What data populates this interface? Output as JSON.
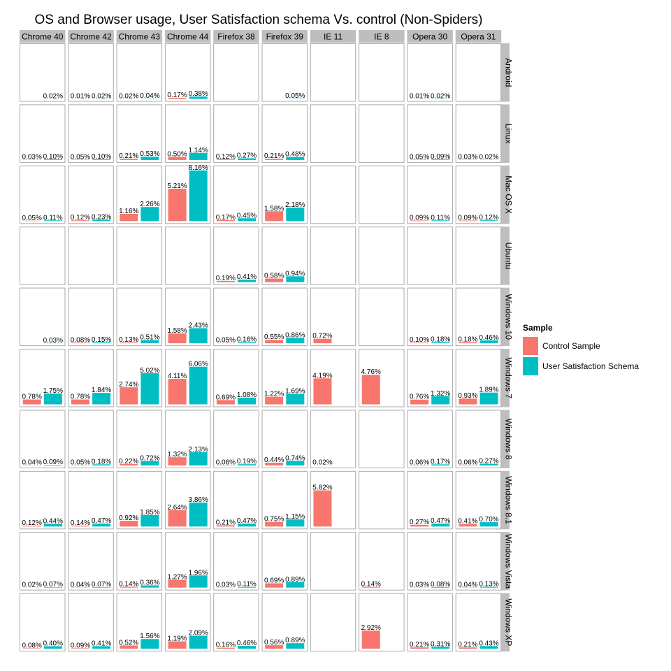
{
  "chart_data": {
    "type": "bar",
    "title": "OS and Browser usage, User Satisfaction schema Vs. control (Non-Spiders)",
    "facet_columns": [
      "Chrome 40",
      "Chrome 42",
      "Chrome 43",
      "Chrome 44",
      "Firefox 38",
      "Firefox 39",
      "IE 11",
      "IE 8",
      "Opera 30",
      "Opera 31"
    ],
    "facet_rows": [
      "Android",
      "Linux",
      "Mac OS X",
      "Ubuntu",
      "Windows 10",
      "Windows 7",
      "Windows 8",
      "Windows 8.1",
      "Windows Vista",
      "Windows XP"
    ],
    "ylim": [
      0,
      8.5
    ],
    "grid": false,
    "legend_position": "right",
    "legend": {
      "title": "Sample",
      "items": [
        {
          "name": "Control Sample",
          "color": "#F8766D"
        },
        {
          "name": "User Satisfaction Schema",
          "color": "#00BFC4"
        }
      ]
    },
    "cells": {
      "Android": {
        "Chrome 40": [
          null,
          "0.02%"
        ],
        "Chrome 42": [
          "0.01%",
          "0.02%"
        ],
        "Chrome 43": [
          "0.02%",
          "0.04%"
        ],
        "Chrome 44": [
          "0.17%",
          "0.38%"
        ],
        "Firefox 39": [
          null,
          "0.05%"
        ],
        "Opera 30": [
          "0.01%",
          "0.02%"
        ]
      },
      "Linux": {
        "Chrome 40": [
          "0.03%",
          "0.10%"
        ],
        "Chrome 42": [
          "0.05%",
          "0.10%"
        ],
        "Chrome 43": [
          "0.21%",
          "0.53%"
        ],
        "Chrome 44": [
          "0.50%",
          "1.14%"
        ],
        "Firefox 38": [
          "0.12%",
          "0.27%"
        ],
        "Firefox 39": [
          "0.21%",
          "0.48%"
        ],
        "Opera 30": [
          "0.05%",
          "0.09%"
        ],
        "Opera 31": [
          "0.03%",
          "0.02%"
        ]
      },
      "Mac OS X": {
        "Chrome 40": [
          "0.05%",
          "0.11%"
        ],
        "Chrome 42": [
          "0.12%",
          "0.23%"
        ],
        "Chrome 43": [
          "1.16%",
          "2.26%"
        ],
        "Chrome 44": [
          "5.21%",
          "8.16%"
        ],
        "Firefox 38": [
          "0.17%",
          "0.45%"
        ],
        "Firefox 39": [
          "1.58%",
          "2.18%"
        ],
        "Opera 30": [
          "0.09%",
          "0.11%"
        ],
        "Opera 31": [
          "0.09%",
          "0.12%"
        ]
      },
      "Ubuntu": {
        "Firefox 38": [
          "0.19%",
          "0.41%"
        ],
        "Firefox 39": [
          "0.58%",
          "0.94%"
        ]
      },
      "Windows 10": {
        "Chrome 40": [
          null,
          "0.03%"
        ],
        "Chrome 42": [
          "0.08%",
          "0.15%"
        ],
        "Chrome 43": [
          "0.13%",
          "0.51%"
        ],
        "Chrome 44": [
          "1.58%",
          "2.43%"
        ],
        "Firefox 38": [
          "0.05%",
          "0.16%"
        ],
        "Firefox 39": [
          "0.55%",
          "0.86%"
        ],
        "IE 11": [
          "0.72%",
          null
        ],
        "Opera 30": [
          "0.10%",
          "0.18%"
        ],
        "Opera 31": [
          "0.18%",
          "0.46%"
        ]
      },
      "Windows 7": {
        "Chrome 40": [
          "0.78%",
          "1.75%"
        ],
        "Chrome 42": [
          "0.78%",
          "1.84%"
        ],
        "Chrome 43": [
          "2.74%",
          "5.02%"
        ],
        "Chrome 44": [
          "4.11%",
          "6.06%"
        ],
        "Firefox 38": [
          "0.69%",
          "1.08%"
        ],
        "Firefox 39": [
          "1.22%",
          "1.69%"
        ],
        "IE 11": [
          "4.19%",
          null
        ],
        "IE 8": [
          "4.76%",
          null
        ],
        "Opera 30": [
          "0.76%",
          "1.32%"
        ],
        "Opera 31": [
          "0.93%",
          "1.89%"
        ]
      },
      "Windows 8": {
        "Chrome 40": [
          "0.04%",
          "0.09%"
        ],
        "Chrome 42": [
          "0.05%",
          "0.18%"
        ],
        "Chrome 43": [
          "0.22%",
          "0.72%"
        ],
        "Chrome 44": [
          "1.32%",
          "2.13%"
        ],
        "Firefox 38": [
          "0.06%",
          "0.19%"
        ],
        "Firefox 39": [
          "0.44%",
          "0.74%"
        ],
        "IE 11": [
          "0.02%",
          null
        ],
        "Opera 30": [
          "0.06%",
          "0.17%"
        ],
        "Opera 31": [
          "0.06%",
          "0.27%"
        ]
      },
      "Windows 8.1": {
        "Chrome 40": [
          "0.12%",
          "0.44%"
        ],
        "Chrome 42": [
          "0.14%",
          "0.47%"
        ],
        "Chrome 43": [
          "0.92%",
          "1.85%"
        ],
        "Chrome 44": [
          "2.64%",
          "3.86%"
        ],
        "Firefox 38": [
          "0.21%",
          "0.47%"
        ],
        "Firefox 39": [
          "0.75%",
          "1.15%"
        ],
        "IE 11": [
          "5.82%",
          null
        ],
        "Opera 30": [
          "0.27%",
          "0.47%"
        ],
        "Opera 31": [
          "0.41%",
          "0.70%"
        ]
      },
      "Windows Vista": {
        "Chrome 40": [
          "0.02%",
          "0.07%"
        ],
        "Chrome 42": [
          "0.04%",
          "0.07%"
        ],
        "Chrome 43": [
          "0.14%",
          "0.36%"
        ],
        "Chrome 44": [
          "1.27%",
          "1.96%"
        ],
        "Firefox 38": [
          "0.03%",
          "0.11%"
        ],
        "Firefox 39": [
          "0.69%",
          "0.89%"
        ],
        "IE 8": [
          "0.14%",
          null
        ],
        "Opera 30": [
          "0.03%",
          "0.08%"
        ],
        "Opera 31": [
          "0.04%",
          "0.13%"
        ]
      },
      "Windows XP": {
        "Chrome 40": [
          "0.08%",
          "0.40%"
        ],
        "Chrome 42": [
          "0.09%",
          "0.41%"
        ],
        "Chrome 43": [
          "0.52%",
          "1.56%"
        ],
        "Chrome 44": [
          "1.19%",
          "2.09%"
        ],
        "Firefox 38": [
          "0.16%",
          "0.46%"
        ],
        "Firefox 39": [
          "0.56%",
          "0.89%"
        ],
        "IE 8": [
          "2.92%",
          null
        ],
        "Opera 30": [
          "0.21%",
          "0.31%"
        ],
        "Opera 31": [
          "0.21%",
          "0.43%"
        ]
      }
    }
  }
}
